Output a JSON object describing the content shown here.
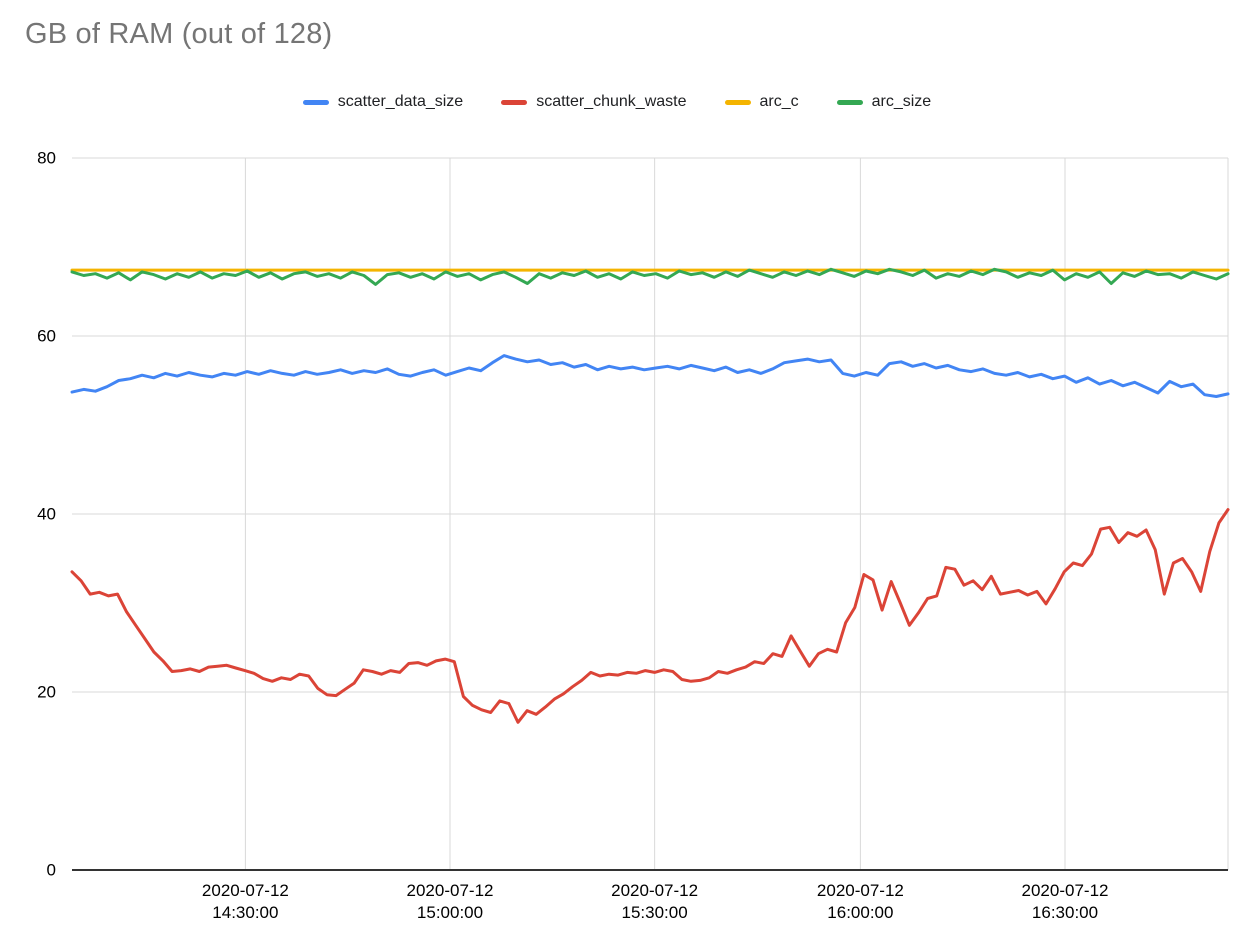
{
  "chart_data": {
    "type": "line",
    "title": "GB of RAM (out of 128)",
    "ylabel": "",
    "xlabel": "",
    "ylim": [
      0,
      80
    ],
    "yticks": [
      0,
      20,
      40,
      60,
      80
    ],
    "grid": true,
    "legend_position": "top",
    "xticks": [
      {
        "fraction": 0.15,
        "date": "2020-07-12",
        "time": "14:30:00"
      },
      {
        "fraction": 0.327,
        "date": "2020-07-12",
        "time": "15:00:00"
      },
      {
        "fraction": 0.504,
        "date": "2020-07-12",
        "time": "15:30:00"
      },
      {
        "fraction": 0.682,
        "date": "2020-07-12",
        "time": "16:00:00"
      },
      {
        "fraction": 0.859,
        "date": "2020-07-12",
        "time": "16:30:00"
      }
    ],
    "series": [
      {
        "name": "scatter_data_size",
        "color": "#4285f4",
        "values": [
          53.7,
          54.0,
          53.8,
          54.3,
          55.0,
          55.2,
          55.6,
          55.3,
          55.8,
          55.5,
          55.9,
          55.6,
          55.4,
          55.8,
          55.6,
          56.0,
          55.7,
          56.1,
          55.8,
          55.6,
          56.0,
          55.7,
          55.9,
          56.2,
          55.8,
          56.1,
          55.9,
          56.3,
          55.7,
          55.5,
          55.9,
          56.2,
          55.6,
          56.0,
          56.4,
          56.1,
          57.0,
          57.8,
          57.4,
          57.1,
          57.3,
          56.8,
          57.0,
          56.5,
          56.8,
          56.2,
          56.6,
          56.3,
          56.5,
          56.2,
          56.4,
          56.6,
          56.3,
          56.7,
          56.4,
          56.1,
          56.5,
          55.9,
          56.2,
          55.8,
          56.3,
          57.0,
          57.2,
          57.4,
          57.1,
          57.3,
          55.8,
          55.5,
          55.9,
          55.6,
          56.9,
          57.1,
          56.6,
          56.9,
          56.4,
          56.7,
          56.2,
          56.0,
          56.3,
          55.8,
          55.6,
          55.9,
          55.4,
          55.7,
          55.2,
          55.5,
          54.8,
          55.3,
          54.6,
          55.0,
          54.4,
          54.8,
          54.2,
          53.6,
          54.9,
          54.3,
          54.6,
          53.4,
          53.2,
          53.5
        ]
      },
      {
        "name": "scatter_chunk_waste",
        "color": "#db4437",
        "values": [
          33.5,
          32.5,
          31.0,
          31.2,
          30.8,
          31.0,
          29.0,
          27.5,
          26.0,
          24.5,
          23.5,
          22.3,
          22.4,
          22.6,
          22.3,
          22.8,
          22.9,
          23.0,
          22.7,
          22.4,
          22.1,
          21.5,
          21.2,
          21.6,
          21.4,
          22.0,
          21.8,
          20.4,
          19.7,
          19.6,
          20.3,
          21.0,
          22.5,
          22.3,
          22.0,
          22.4,
          22.2,
          23.2,
          23.3,
          23.0,
          23.5,
          23.7,
          23.4,
          19.5,
          18.5,
          18.0,
          17.7,
          19.0,
          18.7,
          16.6,
          17.9,
          17.5,
          18.3,
          19.2,
          19.8,
          20.6,
          21.3,
          22.2,
          21.8,
          22.0,
          21.9,
          22.2,
          22.1,
          22.4,
          22.2,
          22.5,
          22.3,
          21.4,
          21.2,
          21.3,
          21.6,
          22.3,
          22.1,
          22.5,
          22.8,
          23.4,
          23.2,
          24.3,
          24.0,
          26.3,
          24.6,
          22.9,
          24.3,
          24.8,
          24.5,
          27.8,
          29.5,
          33.2,
          32.6,
          29.2,
          32.4,
          30.0,
          27.5,
          28.9,
          30.5,
          30.8,
          34.0,
          33.8,
          32.0,
          32.5,
          31.5,
          33.0,
          31.0,
          31.2,
          31.4,
          30.9,
          31.3,
          29.9,
          31.6,
          33.5,
          34.5,
          34.2,
          35.5,
          38.3,
          38.5,
          36.8,
          37.9,
          37.5,
          38.2,
          36.0,
          31.0,
          34.5,
          35.0,
          33.5,
          31.3,
          35.8,
          39.0,
          40.5
        ]
      },
      {
        "name": "arc_c",
        "color": "#f4b400",
        "values": [
          67.4,
          67.4
        ]
      },
      {
        "name": "arc_size",
        "color": "#34a853",
        "values": [
          67.2,
          66.8,
          67.0,
          66.5,
          67.1,
          66.3,
          67.2,
          66.9,
          66.4,
          67.0,
          66.6,
          67.2,
          66.5,
          67.0,
          66.8,
          67.3,
          66.6,
          67.1,
          66.4,
          67.0,
          67.2,
          66.7,
          67.0,
          66.5,
          67.2,
          66.8,
          65.8,
          66.9,
          67.1,
          66.6,
          67.0,
          66.4,
          67.2,
          66.7,
          67.0,
          66.3,
          66.9,
          67.2,
          66.6,
          65.9,
          67.0,
          66.5,
          67.1,
          66.8,
          67.3,
          66.6,
          67.0,
          66.4,
          67.2,
          66.8,
          67.0,
          66.5,
          67.3,
          66.9,
          67.1,
          66.6,
          67.2,
          66.7,
          67.4,
          67.0,
          66.6,
          67.2,
          66.8,
          67.3,
          66.9,
          67.5,
          67.1,
          66.7,
          67.3,
          67.0,
          67.5,
          67.2,
          66.8,
          67.4,
          66.5,
          67.0,
          66.7,
          67.3,
          66.9,
          67.5,
          67.2,
          66.6,
          67.1,
          66.8,
          67.4,
          66.3,
          67.0,
          66.6,
          67.2,
          65.9,
          67.1,
          66.7,
          67.3,
          66.9,
          67.0,
          66.5,
          67.2,
          66.8,
          66.4,
          67.0
        ]
      }
    ]
  }
}
